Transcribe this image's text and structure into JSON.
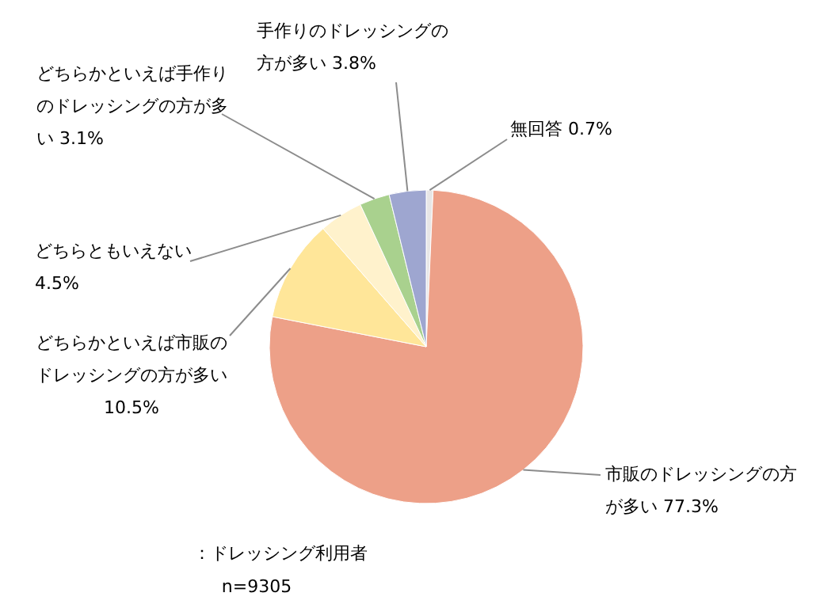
{
  "chart_data": {
    "type": "pie",
    "categories": [
      "無回答",
      "市販のドレッシングの方が多い",
      "どちらかといえば市販のドレッシングの方が多い",
      "どちらともいえない",
      "どちらかといえば手作りのドレッシングの方が多い",
      "手作りのドレッシングの方が多い"
    ],
    "values": [
      0.7,
      77.3,
      10.5,
      4.5,
      3.1,
      3.8
    ],
    "value_labels": [
      "0.7%",
      "77.3%",
      "10.5%",
      "4.5%",
      "3.1%",
      "3.8%"
    ],
    "colors": [
      "#e7e6e6",
      "#eda088",
      "#ffe699",
      "#fff2cc",
      "#a9d18e",
      "#9ea6d0"
    ],
    "annotations": [
      "：ドレッシング利用者",
      "n=9305"
    ]
  }
}
